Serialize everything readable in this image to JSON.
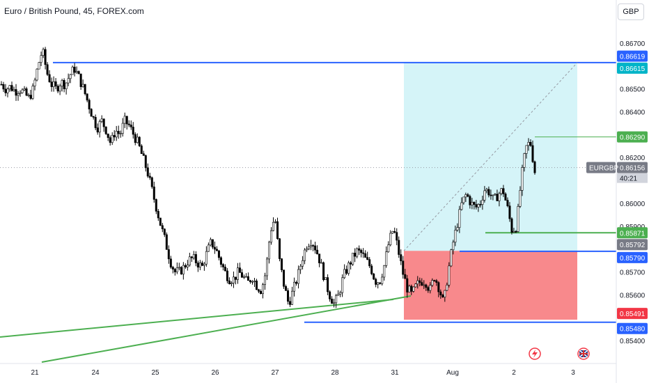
{
  "header": {
    "title": "Euro / British Pound, 45, FOREX.com",
    "currency": "GBP"
  },
  "colors": {
    "blue": "#2962ff",
    "green": "#4caf50",
    "red": "#f23645",
    "grey": "#787b86",
    "profit_zone": "#b2ebf2",
    "loss_zone": "#f77c80"
  },
  "chart_data": {
    "type": "candlestick",
    "symbol": "EURGBP",
    "countdown": "40:21",
    "y_axis": {
      "ticks": [
        "0.86700",
        "0.86500",
        "0.86400",
        "0.86200",
        "0.86000",
        "0.85900",
        "0.85700",
        "0.85600",
        "0.85400"
      ],
      "tick_values": [
        0.867,
        0.865,
        0.864,
        0.862,
        0.86,
        0.859,
        0.857,
        0.856,
        0.854
      ],
      "range": [
        0.8538,
        0.8675
      ]
    },
    "x_axis": {
      "labels": [
        "21",
        "24",
        "25",
        "26",
        "27",
        "28",
        "31",
        "Aug",
        "2",
        "3"
      ]
    },
    "price_tags": [
      {
        "label": "0.86619",
        "value": 0.86619,
        "style": "blue"
      },
      {
        "label": "0.86615",
        "value": 0.86615,
        "style": "blue-teal"
      },
      {
        "label": "0.86290",
        "value": 0.8629,
        "style": "green"
      },
      {
        "label": "0.86156",
        "value": 0.86156,
        "style": "grey"
      },
      {
        "label": "0.85871",
        "value": 0.85871,
        "style": "green"
      },
      {
        "label": "0.85792",
        "value": 0.85792,
        "style": "grey"
      },
      {
        "label": "0.85790",
        "value": 0.8579,
        "style": "blue"
      },
      {
        "label": "0.85491",
        "value": 0.85491,
        "style": "red"
      },
      {
        "label": "0.85480",
        "value": 0.8548,
        "style": "blue"
      }
    ],
    "horizontal_levels": [
      {
        "value": 0.86615,
        "color": "blue"
      },
      {
        "value": 0.8629,
        "color": "green"
      },
      {
        "value": 0.85871,
        "color": "green"
      },
      {
        "value": 0.8579,
        "color": "blue"
      },
      {
        "value": 0.8548,
        "color": "blue"
      }
    ],
    "position": {
      "entry": 0.85792,
      "target": 0.86615,
      "stop": 0.85491
    },
    "close_path": [
      0.8652,
      0.865,
      0.8651,
      0.8649,
      0.865,
      0.8648,
      0.8646,
      0.865,
      0.866,
      0.8667,
      0.8657,
      0.8652,
      0.865,
      0.8653,
      0.8652,
      0.8656,
      0.8659,
      0.8655,
      0.865,
      0.8644,
      0.8638,
      0.8633,
      0.8636,
      0.8632,
      0.8626,
      0.8632,
      0.863,
      0.8636,
      0.8634,
      0.863,
      0.8626,
      0.862,
      0.8614,
      0.8606,
      0.8598,
      0.859,
      0.8583,
      0.8575,
      0.857,
      0.857,
      0.8572,
      0.8575,
      0.8576,
      0.8574,
      0.8572,
      0.8578,
      0.8583,
      0.858,
      0.8575,
      0.857,
      0.8567,
      0.8567,
      0.857,
      0.8568,
      0.8565,
      0.8568,
      0.8564,
      0.8562,
      0.857,
      0.8588,
      0.8594,
      0.8575,
      0.8564,
      0.8556,
      0.8562,
      0.8568,
      0.8576,
      0.8582,
      0.8584,
      0.858,
      0.8574,
      0.8566,
      0.856,
      0.8556,
      0.856,
      0.8568,
      0.8572,
      0.8576,
      0.8579,
      0.8578,
      0.8575,
      0.8572,
      0.8566,
      0.8566,
      0.8573,
      0.8583,
      0.8589,
      0.858,
      0.857,
      0.8563,
      0.856,
      0.8564,
      0.8566,
      0.8566,
      0.8562,
      0.8568,
      0.8563,
      0.8556,
      0.857,
      0.8582,
      0.8591,
      0.86,
      0.8604,
      0.86,
      0.8598,
      0.86,
      0.8606,
      0.8605,
      0.8601,
      0.8604,
      0.8606,
      0.8598,
      0.8588,
      0.859,
      0.861,
      0.8624,
      0.8627,
      0.8614
    ]
  },
  "icons": {
    "lightning": "lightning-icon",
    "flag": "uk-flag-icon"
  }
}
